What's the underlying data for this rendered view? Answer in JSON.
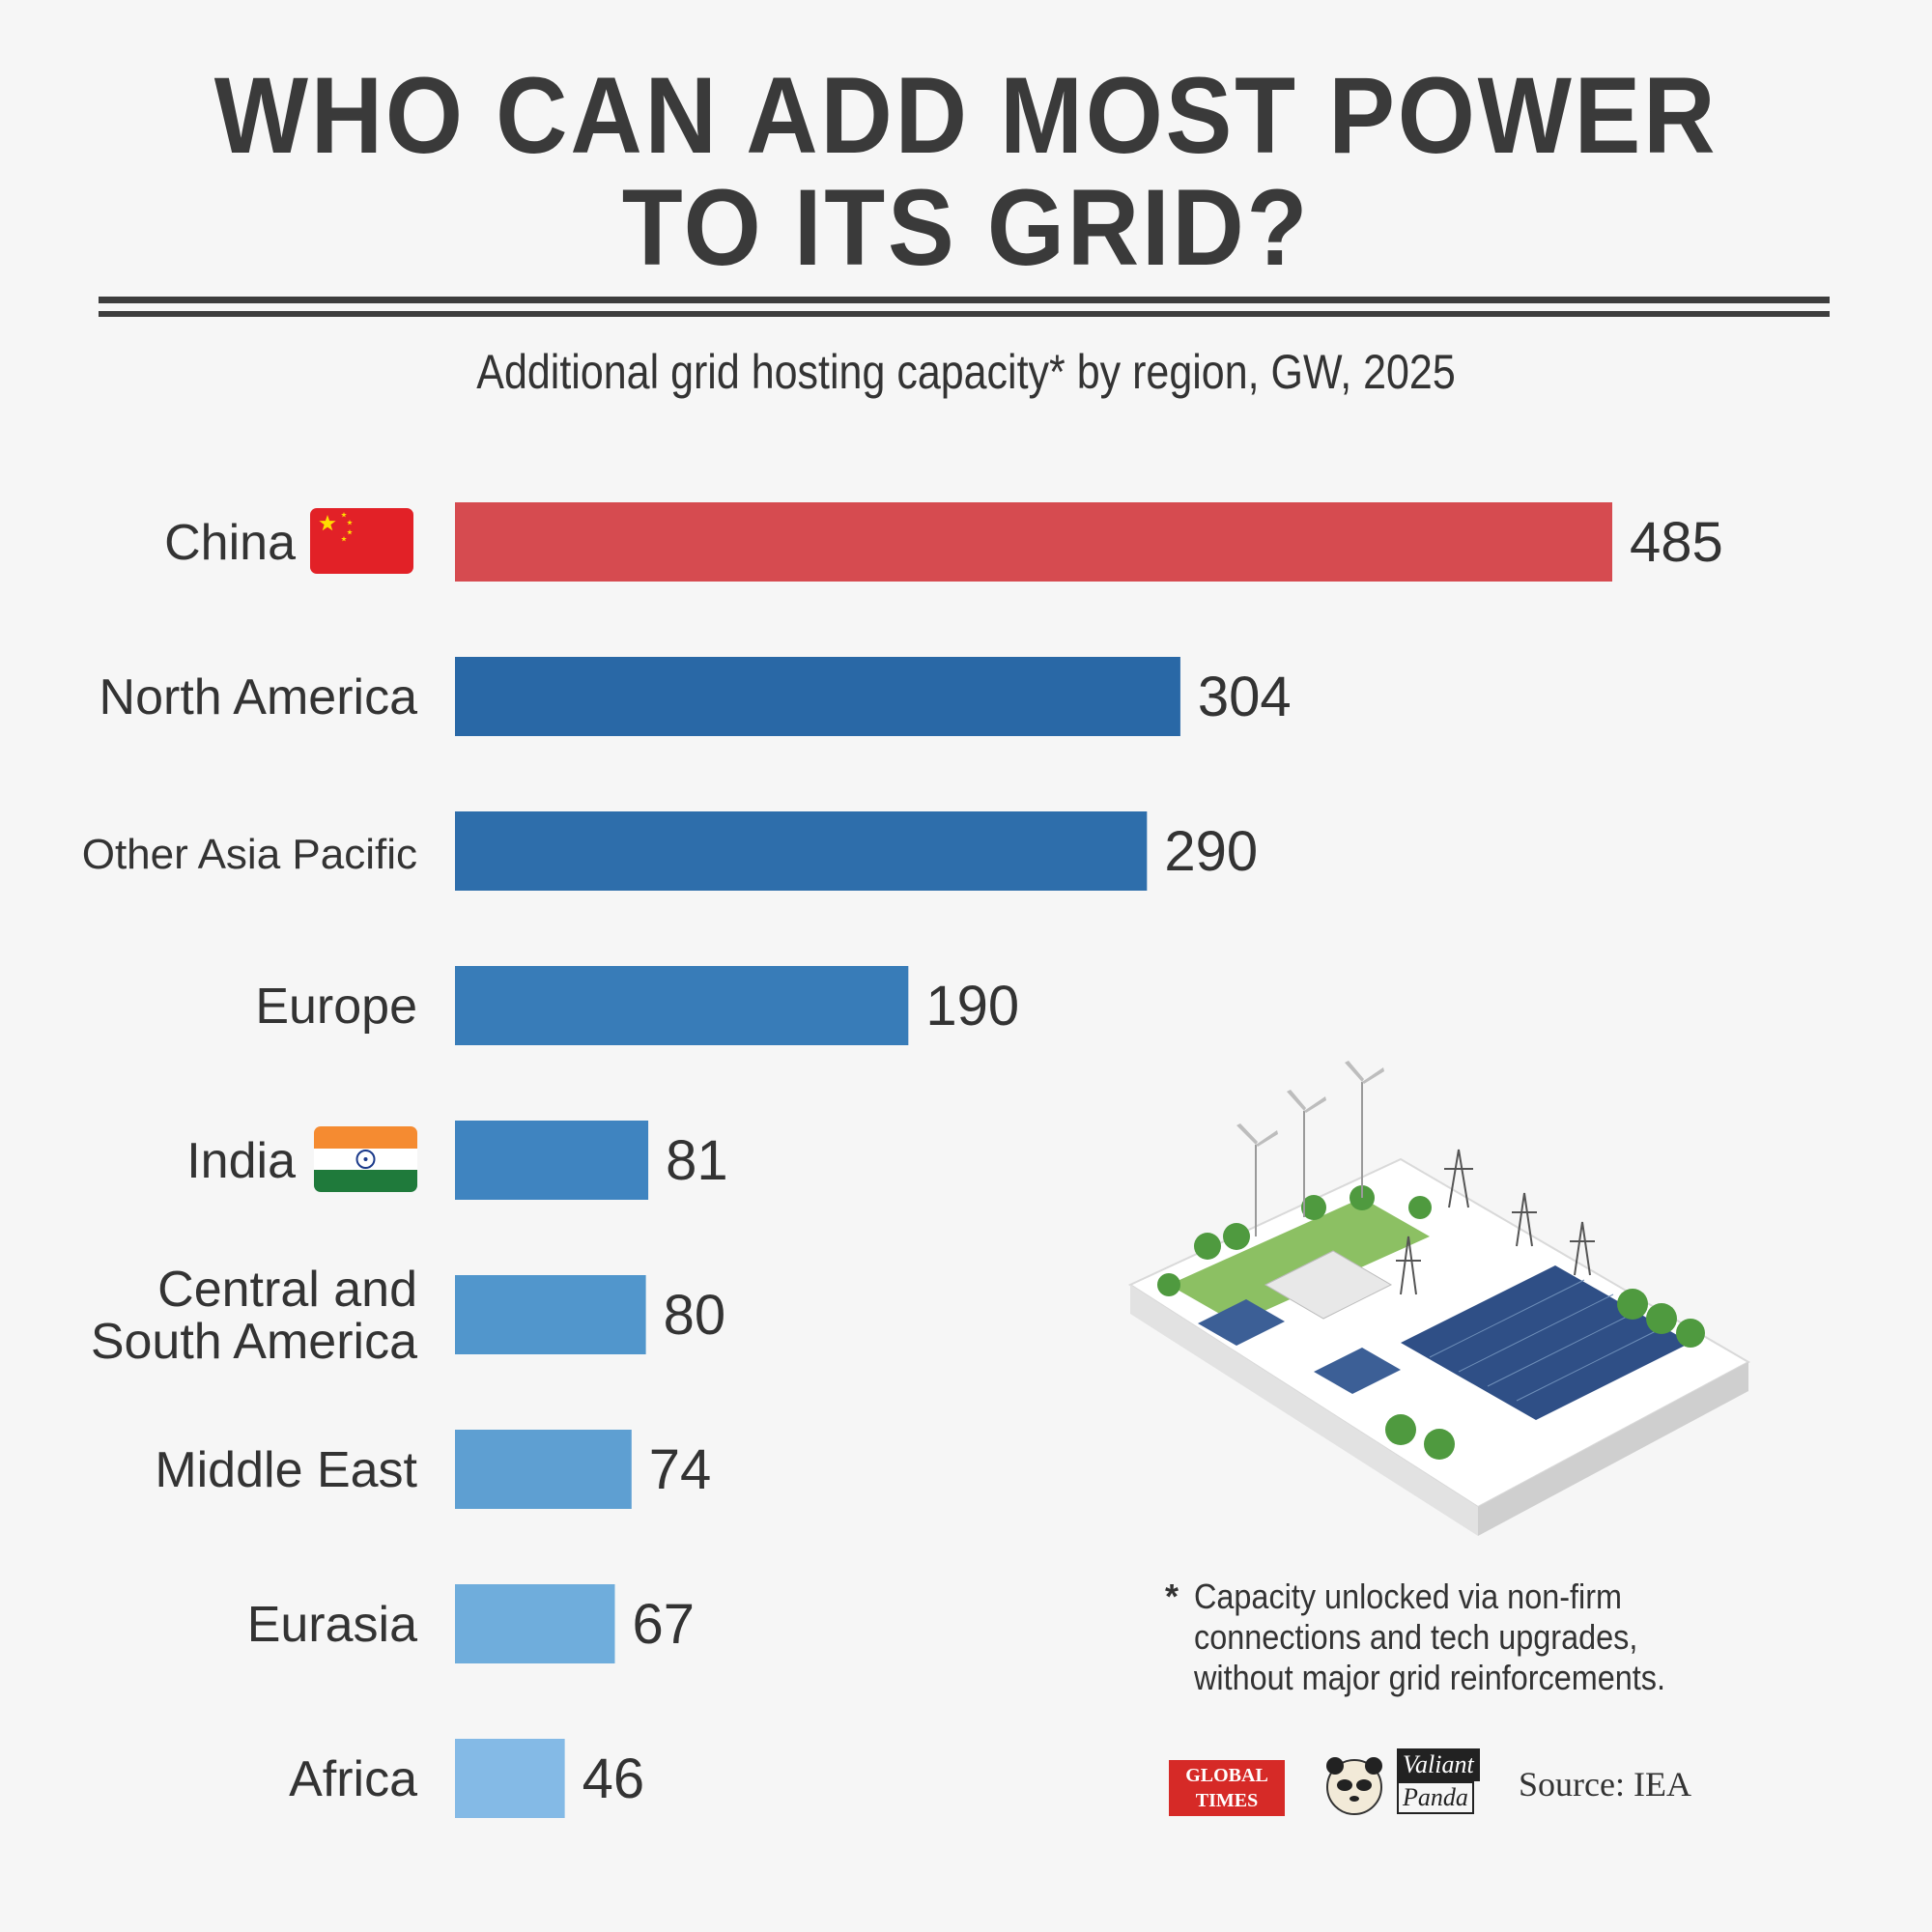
{
  "header": {
    "title_line1": "WHO CAN ADD MOST POWER",
    "title_line2": "TO ITS GRID?",
    "subtitle": "Additional grid hosting capacity* by region, GW, 2025"
  },
  "chart_data": {
    "type": "bar",
    "orientation": "horizontal",
    "title": "Additional grid hosting capacity* by region, GW, 2025",
    "unit": "GW",
    "xlim": [
      0,
      485
    ],
    "categories": [
      [
        "China"
      ],
      [
        "North America"
      ],
      [
        "Other Asia Pacific"
      ],
      [
        "Europe"
      ],
      [
        "India"
      ],
      [
        "Central and",
        "South America"
      ],
      [
        "Middle East"
      ],
      [
        "Eurasia"
      ],
      [
        "Africa"
      ]
    ],
    "values": [
      485,
      304,
      290,
      190,
      81,
      80,
      74,
      67,
      46
    ],
    "colors": [
      "#d64b50",
      "#2968a6",
      "#2e6eab",
      "#387cb8",
      "#3f84c0",
      "#5196cc",
      "#5e9fd2",
      "#6faddc",
      "#84bae6"
    ],
    "flags": [
      "china-flag",
      "",
      "",
      "",
      "india-flag",
      "",
      "",
      "",
      ""
    ]
  },
  "footnote": {
    "marker": "*",
    "text": "Capacity unlocked via non-firm connections and tech upgrades, without major grid reinforcements."
  },
  "logos": {
    "global_times_line1": "GLOBAL",
    "global_times_line2": "TIMES",
    "valiant_panda_line1": "Valiant",
    "valiant_panda_line2": "Panda"
  },
  "source": "Source: IEA"
}
